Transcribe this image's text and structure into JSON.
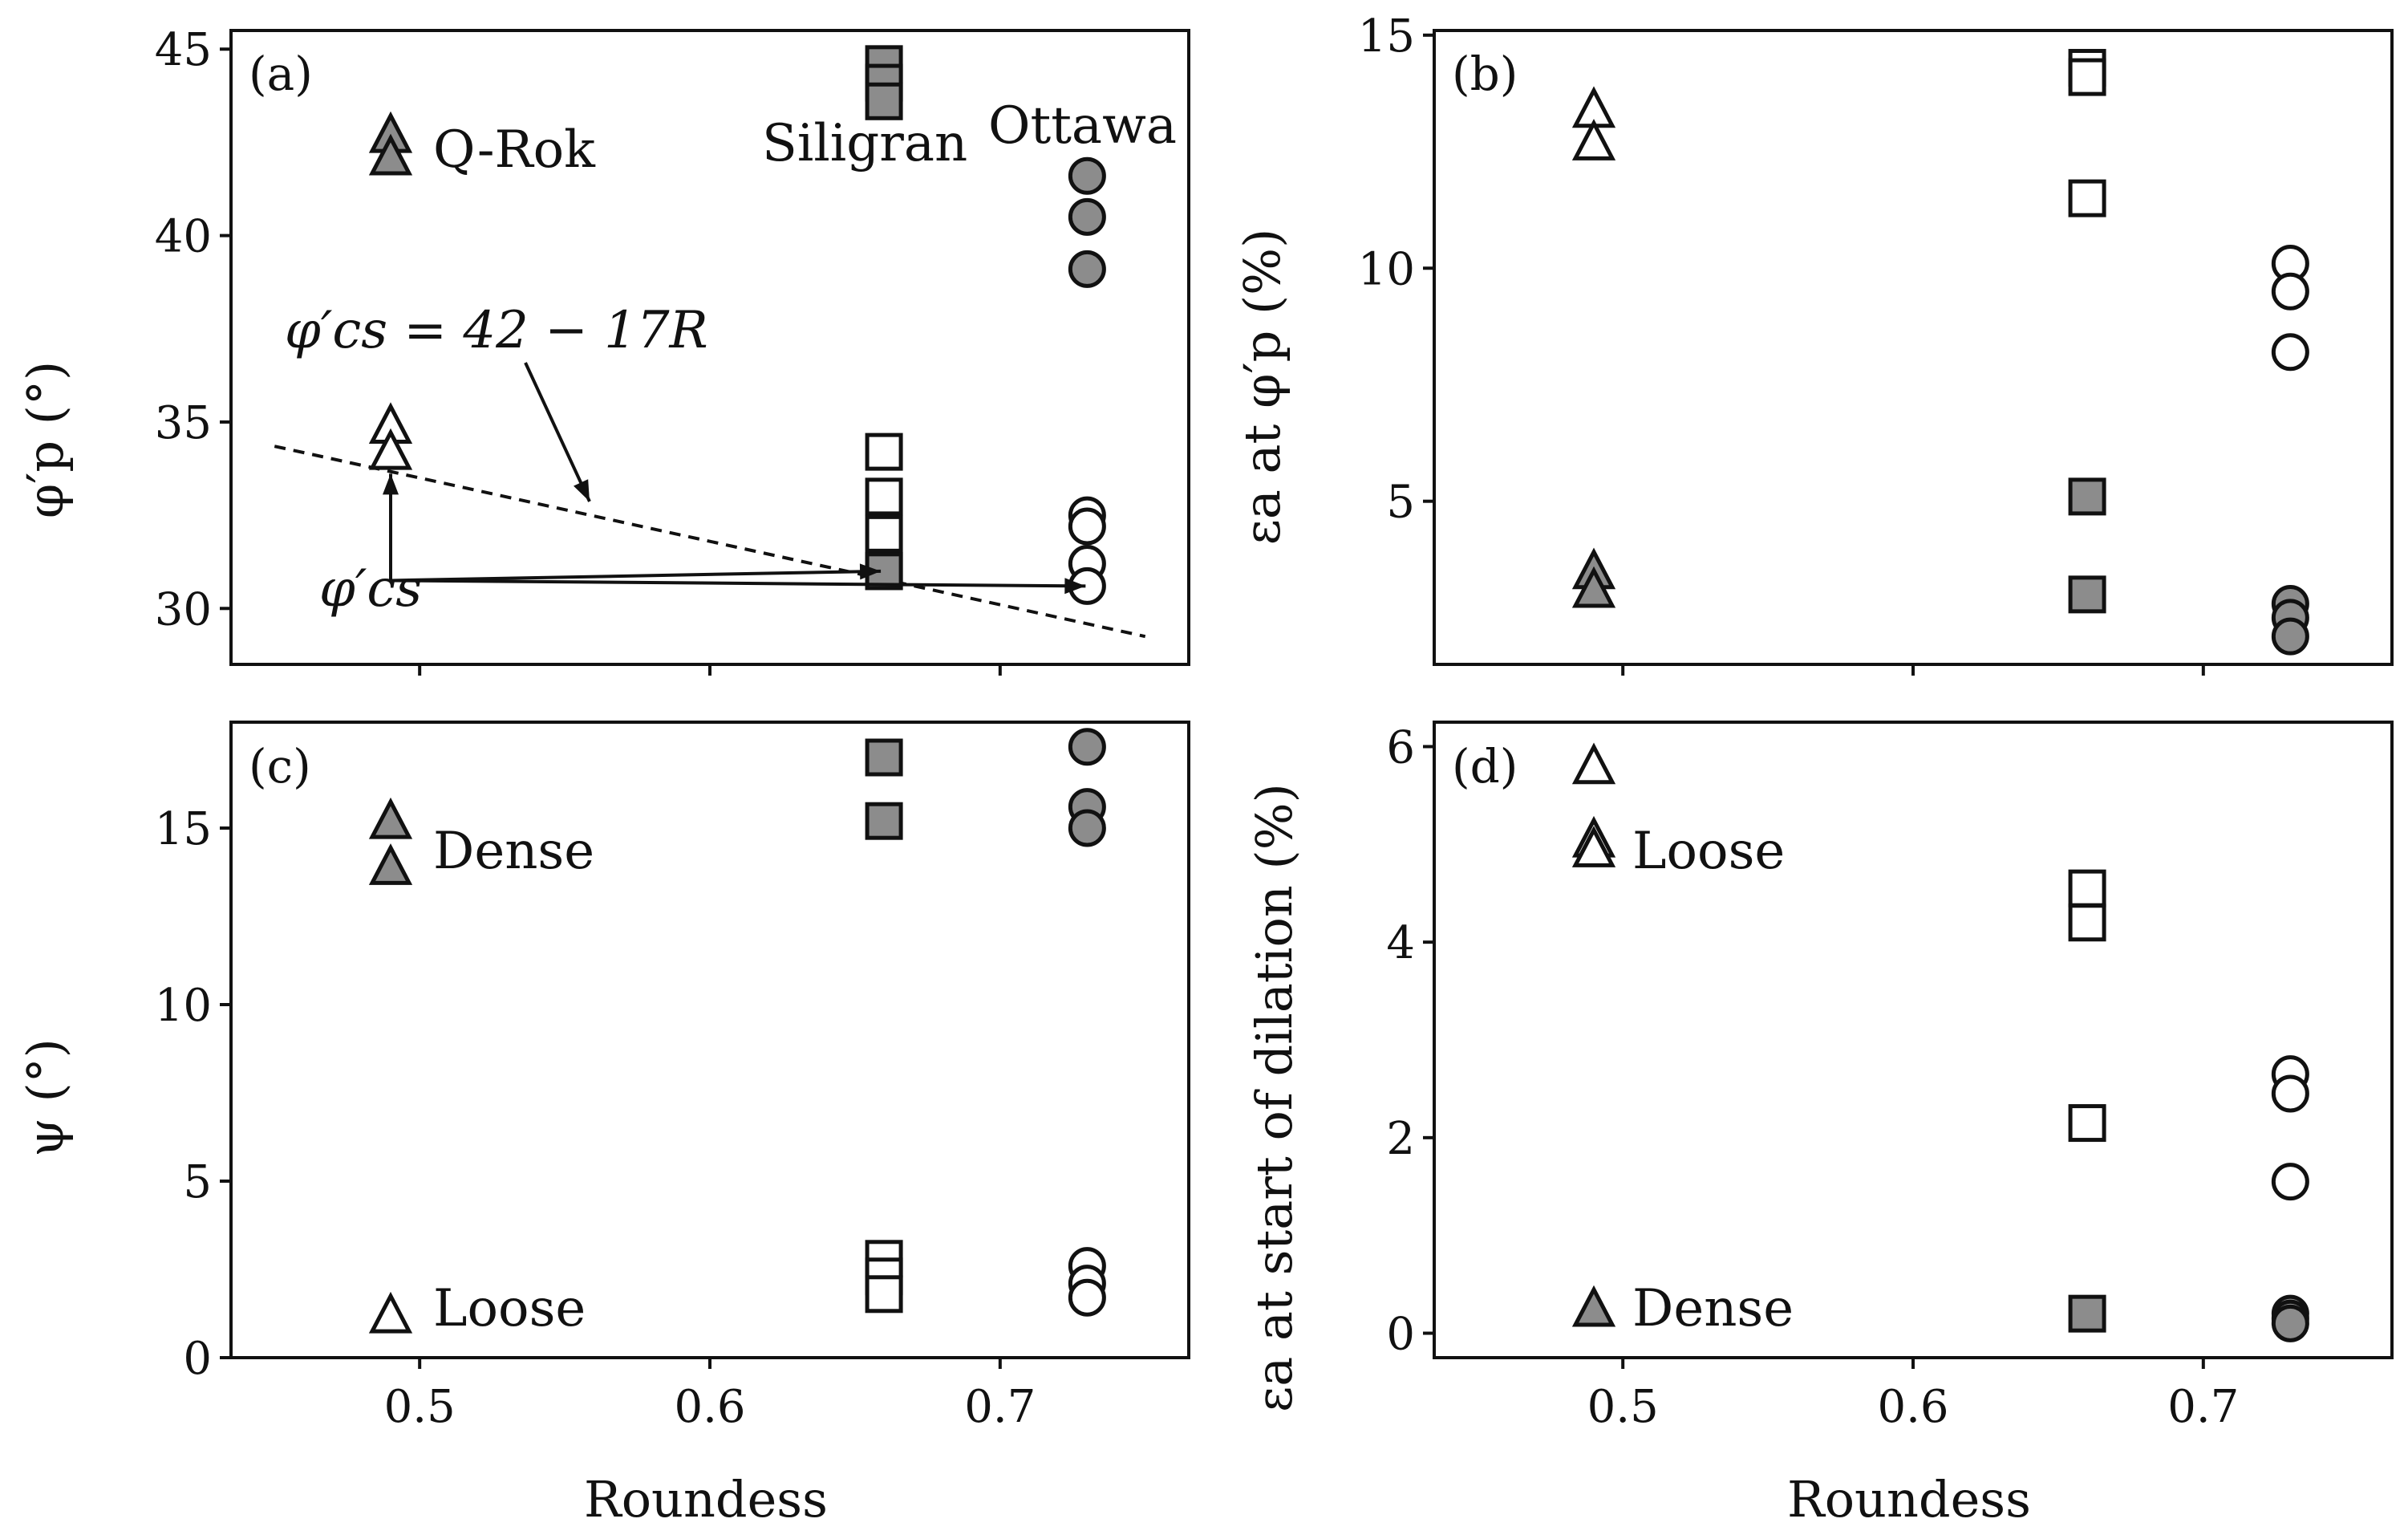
{
  "figure": {
    "x_label": "Roundess",
    "x_ticks": [
      "0.5",
      "0.6",
      "0.7"
    ],
    "colors": {
      "dense_fill": "#8c8c8c",
      "loose_fill": "#ffffff",
      "stroke": "#111111"
    }
  },
  "chart_data": [
    {
      "panel": "(a)",
      "type": "scatter",
      "xlabel": "",
      "ylabel": "φ′p (°)",
      "xlim": [
        0.435,
        0.765
      ],
      "ylim": [
        28.5,
        45.5
      ],
      "y_ticks": [
        "30",
        "35",
        "40",
        "45"
      ],
      "series": [
        {
          "name": "Q-Rok dense",
          "marker": "triangle",
          "fill": "dense",
          "x": [
            0.49,
            0.49
          ],
          "y": [
            42.7,
            42.1
          ]
        },
        {
          "name": "Q-Rok loose",
          "marker": "triangle",
          "fill": "loose",
          "x": [
            0.49,
            0.49
          ],
          "y": [
            34.9,
            34.2
          ]
        },
        {
          "name": "Siligran dense",
          "marker": "square",
          "fill": "dense",
          "x": [
            0.66,
            0.66,
            0.66
          ],
          "y": [
            44.6,
            44.1,
            43.6
          ]
        },
        {
          "name": "Siligran loose",
          "marker": "square",
          "fill": "loose",
          "x": [
            0.66,
            0.66,
            0.66,
            0.66
          ],
          "y": [
            34.2,
            33.0,
            32.0,
            31.0
          ]
        },
        {
          "name": "Siligran critical state",
          "marker": "square",
          "fill": "dense",
          "x": [
            0.66
          ],
          "y": [
            31.0
          ]
        },
        {
          "name": "Ottawa dense",
          "marker": "circle",
          "fill": "dense",
          "x": [
            0.73,
            0.73,
            0.73
          ],
          "y": [
            41.6,
            40.5,
            39.1
          ]
        },
        {
          "name": "Ottawa loose",
          "marker": "circle",
          "fill": "loose",
          "x": [
            0.73,
            0.73,
            0.73,
            0.73
          ],
          "y": [
            32.5,
            32.2,
            31.2,
            30.6
          ]
        }
      ],
      "fit_line": {
        "x": [
          0.45,
          0.75
        ],
        "y": [
          34.35,
          29.25
        ]
      },
      "fit_label": "φ′cs = 42 − 17R",
      "cs_label": "φ′cs",
      "cs_points": {
        "x": [
          0.49,
          0.66,
          0.73
        ],
        "y": [
          34.0,
          31.0,
          30.6
        ]
      },
      "annotations": [
        "Q-Rok",
        "Siligran",
        "Ottawa"
      ]
    },
    {
      "panel": "(b)",
      "type": "scatter",
      "xlabel": "",
      "ylabel": "εa at φ′p (%)",
      "xlim": [
        0.435,
        0.765
      ],
      "ylim": [
        1.5,
        15.1
      ],
      "y_ticks": [
        "5",
        "10",
        "15"
      ],
      "series": [
        {
          "name": "Q-Rok loose",
          "marker": "triangle",
          "fill": "loose",
          "x": [
            0.49,
            0.49
          ],
          "y": [
            13.4,
            12.7
          ]
        },
        {
          "name": "Q-Rok dense",
          "marker": "triangle",
          "fill": "dense",
          "x": [
            0.49,
            0.49
          ],
          "y": [
            3.5,
            3.1
          ]
        },
        {
          "name": "Siligran loose",
          "marker": "square",
          "fill": "loose",
          "x": [
            0.66,
            0.66,
            0.66
          ],
          "y": [
            14.3,
            14.1,
            11.5
          ]
        },
        {
          "name": "Siligran dense",
          "marker": "square",
          "fill": "dense",
          "x": [
            0.66,
            0.66
          ],
          "y": [
            5.1,
            3.0
          ]
        },
        {
          "name": "Ottawa loose",
          "marker": "circle",
          "fill": "loose",
          "x": [
            0.73,
            0.73,
            0.73
          ],
          "y": [
            10.1,
            9.5,
            8.2
          ]
        },
        {
          "name": "Ottawa dense",
          "marker": "circle",
          "fill": "dense",
          "x": [
            0.73,
            0.73,
            0.73
          ],
          "y": [
            2.8,
            2.5,
            2.1
          ]
        }
      ]
    },
    {
      "panel": "(c)",
      "type": "scatter",
      "xlabel": "Roundess",
      "ylabel": "ψ (°)",
      "xlim": [
        0.435,
        0.765
      ],
      "ylim": [
        0,
        18.0
      ],
      "y_ticks": [
        "0",
        "5",
        "10",
        "15"
      ],
      "series": [
        {
          "name": "Q-Rok dense",
          "marker": "triangle",
          "fill": "dense",
          "x": [
            0.49,
            0.49
          ],
          "y": [
            15.2,
            13.9
          ]
        },
        {
          "name": "Q-Rok loose",
          "marker": "triangle",
          "fill": "loose",
          "x": [
            0.49
          ],
          "y": [
            1.2
          ]
        },
        {
          "name": "Siligran dense",
          "marker": "square",
          "fill": "dense",
          "x": [
            0.66,
            0.66
          ],
          "y": [
            17.0,
            15.2
          ]
        },
        {
          "name": "Siligran loose",
          "marker": "square",
          "fill": "loose",
          "x": [
            0.66,
            0.66,
            0.66
          ],
          "y": [
            2.8,
            2.3,
            1.8
          ]
        },
        {
          "name": "Ottawa dense",
          "marker": "circle",
          "fill": "dense",
          "x": [
            0.73,
            0.73,
            0.73
          ],
          "y": [
            17.3,
            15.6,
            15.0
          ]
        },
        {
          "name": "Ottawa loose",
          "marker": "circle",
          "fill": "loose",
          "x": [
            0.73,
            0.73,
            0.73
          ],
          "y": [
            2.6,
            2.1,
            1.7
          ]
        }
      ],
      "annotations": [
        "Dense",
        "Loose"
      ]
    },
    {
      "panel": "(d)",
      "type": "scatter",
      "xlabel": "Roundess",
      "ylabel": "εa at start of dilation (%)",
      "xlim": [
        0.435,
        0.765
      ],
      "ylim": [
        -0.25,
        6.25
      ],
      "y_ticks": [
        "0",
        "2",
        "4",
        "6"
      ],
      "series": [
        {
          "name": "Q-Rok loose",
          "marker": "triangle",
          "fill": "loose",
          "x": [
            0.49,
            0.49,
            0.49
          ],
          "y": [
            5.8,
            5.05,
            4.95
          ]
        },
        {
          "name": "Q-Rok dense",
          "marker": "triangle",
          "fill": "dense",
          "x": [
            0.49
          ],
          "y": [
            0.25
          ]
        },
        {
          "name": "Siligran loose",
          "marker": "square",
          "fill": "loose",
          "x": [
            0.66,
            0.66,
            0.66
          ],
          "y": [
            4.55,
            4.2,
            2.15
          ]
        },
        {
          "name": "Siligran dense",
          "marker": "square",
          "fill": "dense",
          "x": [
            0.66
          ],
          "y": [
            0.2
          ]
        },
        {
          "name": "Ottawa loose",
          "marker": "circle",
          "fill": "loose",
          "x": [
            0.73,
            0.73,
            0.73
          ],
          "y": [
            2.65,
            2.45,
            1.55
          ]
        },
        {
          "name": "Ottawa dense",
          "marker": "circle",
          "fill": "dense",
          "x": [
            0.73,
            0.73,
            0.73
          ],
          "y": [
            0.2,
            0.15,
            0.1
          ]
        }
      ],
      "annotations": [
        "Loose",
        "Dense"
      ]
    }
  ]
}
